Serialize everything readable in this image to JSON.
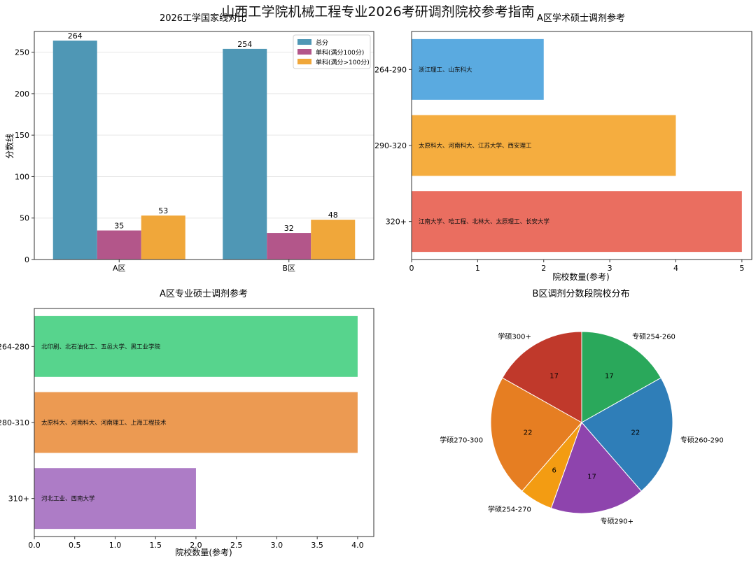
{
  "title": "山西工学院机械工程专业2026考研调剂院校参考指南",
  "chart_data": [
    {
      "type": "bar",
      "title": "2026工学国家线对比",
      "ylabel": "分数线",
      "categories": [
        "A区",
        "B区"
      ],
      "ylim": [
        0,
        275
      ],
      "yticks": [
        0,
        50,
        100,
        150,
        200,
        250
      ],
      "legend_position": "top-right",
      "grid": true,
      "series": [
        {
          "name": "总分",
          "values": [
            264,
            254
          ],
          "color": "#4f97b5"
        },
        {
          "name": "单科(满分100分)",
          "values": [
            35,
            32
          ],
          "color": "#b3568a"
        },
        {
          "name": "单科(满分>100分)",
          "values": [
            53,
            48
          ],
          "color": "#f0a73a"
        }
      ]
    },
    {
      "type": "bar",
      "orientation": "horizontal",
      "title": "A区学术硕士调剂参考",
      "xlabel": "院校数量(参考)",
      "xlim": [
        0,
        5.15
      ],
      "xticks": [
        0,
        1,
        2,
        3,
        4,
        5
      ],
      "categories": [
        "264-290",
        "290-320",
        "320+"
      ],
      "values": [
        2,
        4,
        5
      ],
      "bar_labels": [
        "浙江理工、山东科大",
        "太原科大、河南科大、江苏大学、西安理工",
        "江南大学、哈工程、北林大、太原理工、长安大学"
      ],
      "colors": [
        "#5aaae0",
        "#f5ad3f",
        "#ea6e60"
      ]
    },
    {
      "type": "bar",
      "orientation": "horizontal",
      "title": "A区专业硕士调剂参考",
      "xlabel": "院校数量(参考)",
      "xlim": [
        0,
        4.2
      ],
      "xticks": [
        "0.0",
        "0.5",
        "1.0",
        "1.5",
        "2.0",
        "2.5",
        "3.0",
        "3.5",
        "4.0"
      ],
      "categories": [
        "264-280",
        "280-310",
        "310+"
      ],
      "values": [
        4,
        4,
        2
      ],
      "bar_labels": [
        "北印刷、北石油化工、五邑大学、黑工业学院",
        "太原科大、河南科大、河南理工、上海工程技术",
        "河北工业、西南大学"
      ],
      "colors": [
        "#57d48d",
        "#ec9a52",
        "#ad7cc6"
      ]
    },
    {
      "type": "pie",
      "title": "B区调剂分数段院校分布",
      "slices": [
        {
          "label": "专硕254-260",
          "value": 17,
          "color": "#2aa85b"
        },
        {
          "label": "专硕260-290",
          "value": 22,
          "color": "#2f7eb8"
        },
        {
          "label": "专硕290+",
          "value": 17,
          "color": "#8e44ad"
        },
        {
          "label": "学硕254-270",
          "value": 6,
          "color": "#f39c12"
        },
        {
          "label": "学硕270-300",
          "value": 22,
          "color": "#e67e22"
        },
        {
          "label": "学硕300+",
          "value": 17,
          "color": "#c0392b"
        }
      ]
    }
  ]
}
